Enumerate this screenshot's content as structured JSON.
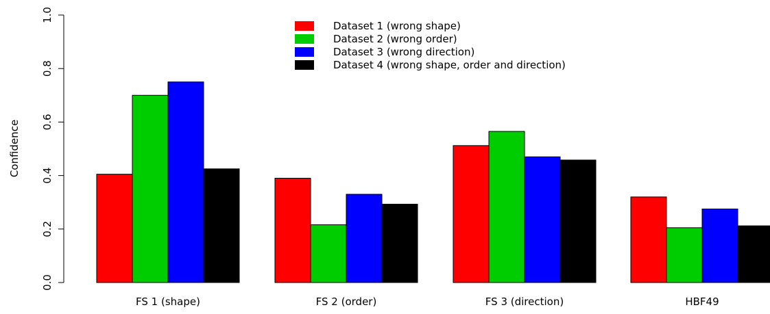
{
  "chart_data": {
    "type": "bar",
    "title": "",
    "xlabel": "",
    "ylabel": "Confidence",
    "ylim": [
      0,
      1
    ],
    "yticks": [
      "0.0",
      "0.2",
      "0.4",
      "0.6",
      "0.8",
      "1.0"
    ],
    "grid": false,
    "legend_position": "top-center",
    "categories": [
      "FS 1 (shape)",
      "FS 2 (order)",
      "FS 3 (direction)",
      "HBF49"
    ],
    "series": [
      {
        "name": "Dataset 1 (wrong shape)",
        "color": "#ff0000",
        "values": [
          0.405,
          0.39,
          0.512,
          0.32
        ]
      },
      {
        "name": "Dataset 2 (wrong order)",
        "color": "#00cd00",
        "values": [
          0.7,
          0.216,
          0.565,
          0.205
        ]
      },
      {
        "name": "Dataset 3 (wrong direction)",
        "color": "#0000ff",
        "values": [
          0.75,
          0.33,
          0.47,
          0.275
        ]
      },
      {
        "name": "Dataset 4 (wrong shape, order and direction)",
        "color": "#000000",
        "values": [
          0.425,
          0.293,
          0.458,
          0.212
        ]
      }
    ]
  }
}
